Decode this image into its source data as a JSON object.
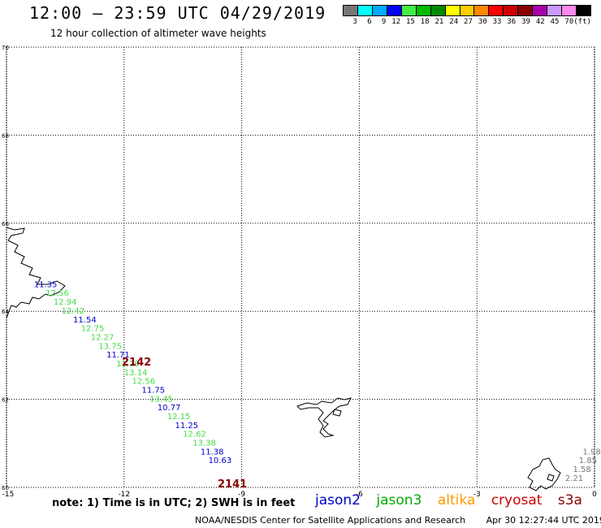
{
  "header": {
    "title": "12:00 – 23:59 UTC 04/29/2019",
    "subtitle": "12 hour collection of altimeter wave heights"
  },
  "legend": {
    "colors": [
      "#777777",
      "#00ffff",
      "#00aaff",
      "#0000ff",
      "#44ee44",
      "#00bb00",
      "#008800",
      "#ffff00",
      "#ffcc00",
      "#ff8800",
      "#ff0000",
      "#cc0000",
      "#880000",
      "#aa00aa",
      "#cc99ff",
      "#ff88ee",
      "#000000"
    ],
    "labels": [
      "3",
      "6",
      "9",
      "12",
      "15",
      "18",
      "21",
      "24",
      "27",
      "30",
      "33",
      "36",
      "39",
      "42",
      "45",
      "70",
      "(ft)"
    ]
  },
  "map": {
    "lon_ticks": [
      "-15",
      "-12",
      "-9",
      "-6",
      "-3",
      "0"
    ],
    "lat_ticks": [
      "70",
      "68",
      "66",
      "64",
      "62",
      "60"
    ],
    "tracks": [
      {
        "id": "2142",
        "color": "#880000"
      },
      {
        "id": "2141",
        "color": "#880000"
      }
    ],
    "observations": [
      {
        "v": "11.35",
        "c": "#0000cc",
        "lon": -14.3,
        "lat": 64.55
      },
      {
        "v": "12.56",
        "c": "#44dd44",
        "lon": -14.0,
        "lat": 64.35
      },
      {
        "v": "12.94",
        "c": "#44dd44",
        "lon": -13.8,
        "lat": 64.15
      },
      {
        "v": "12.42",
        "c": "#44dd44",
        "lon": -13.6,
        "lat": 63.95
      },
      {
        "v": "11.54",
        "c": "#0000cc",
        "lon": -13.3,
        "lat": 63.75
      },
      {
        "v": "12.75",
        "c": "#44dd44",
        "lon": -13.1,
        "lat": 63.55
      },
      {
        "v": "12.27",
        "c": "#44dd44",
        "lon": -12.85,
        "lat": 63.35
      },
      {
        "v": "13.75",
        "c": "#44dd44",
        "lon": -12.65,
        "lat": 63.15
      },
      {
        "v": "11.71",
        "c": "#0000cc",
        "lon": -12.45,
        "lat": 62.95
      },
      {
        "v": "12.29",
        "c": "#44dd44",
        "lon": -12.2,
        "lat": 62.75
      },
      {
        "v": "13.14",
        "c": "#44dd44",
        "lon": -12.0,
        "lat": 62.55
      },
      {
        "v": "12.56",
        "c": "#44dd44",
        "lon": -11.8,
        "lat": 62.35
      },
      {
        "v": "11.75",
        "c": "#0000cc",
        "lon": -11.55,
        "lat": 62.15
      },
      {
        "v": "13.45",
        "c": "#44dd44",
        "lon": -11.35,
        "lat": 61.95
      },
      {
        "v": "10.77",
        "c": "#0000cc",
        "lon": -11.15,
        "lat": 61.75
      },
      {
        "v": "12.15",
        "c": "#44dd44",
        "lon": -10.9,
        "lat": 61.55
      },
      {
        "v": "11.25",
        "c": "#0000cc",
        "lon": -10.7,
        "lat": 61.35
      },
      {
        "v": "12.62",
        "c": "#44dd44",
        "lon": -10.5,
        "lat": 61.15
      },
      {
        "v": "13.38",
        "c": "#44dd44",
        "lon": -10.25,
        "lat": 60.95
      },
      {
        "v": "11.38",
        "c": "#0000cc",
        "lon": -10.05,
        "lat": 60.75
      },
      {
        "v": "10.63",
        "c": "#0000cc",
        "lon": -9.85,
        "lat": 60.55
      },
      {
        "v": "1.98",
        "c": "#777777",
        "lon": -0.3,
        "lat": 60.75
      },
      {
        "v": "1.85",
        "c": "#777777",
        "lon": -0.4,
        "lat": 60.55
      },
      {
        "v": "1.58",
        "c": "#777777",
        "lon": -0.55,
        "lat": 60.35
      },
      {
        "v": "2.21",
        "c": "#777777",
        "lon": -0.75,
        "lat": 60.15
      }
    ]
  },
  "note": "note: 1) Time is in UTC; 2) SWH is in feet",
  "satellites": [
    {
      "name": "jason2",
      "color": "#0000cc"
    },
    {
      "name": "jason3",
      "color": "#00aa00"
    },
    {
      "name": "altika",
      "color": "#ff9900"
    },
    {
      "name": "cryosat",
      "color": "#cc0000"
    },
    {
      "name": "s3a",
      "color": "#880000"
    }
  ],
  "footer": {
    "org": "NOAA/NESDIS Center for Satellite Applications and Research",
    "timestamp": "Apr 30 12:27:44 UTC 2019"
  }
}
